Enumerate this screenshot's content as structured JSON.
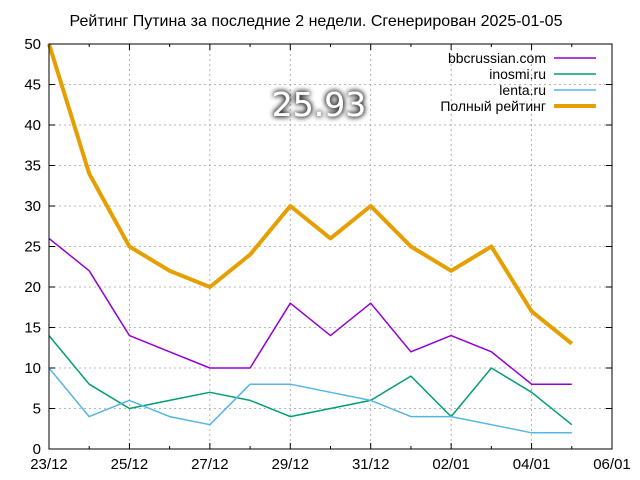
{
  "chart_data": {
    "type": "line",
    "title": "Рейтинг Путина за последние 2 недели. Сгенерирован 2025-01-05",
    "xlabel": "",
    "ylabel": "",
    "ylim": [
      0,
      50
    ],
    "yticks": [
      "0",
      "5",
      "10",
      "15",
      "20",
      "25",
      "30",
      "35",
      "40",
      "45",
      "50"
    ],
    "xticks": [
      "23/12",
      "25/12",
      "27/12",
      "29/12",
      "31/12",
      "02/01",
      "04/01",
      "06/01"
    ],
    "x": [
      "2024-12-23",
      "2024-12-24",
      "2024-12-25",
      "2024-12-26",
      "2024-12-27",
      "2024-12-28",
      "2024-12-29",
      "2024-12-30",
      "2024-12-31",
      "2025-01-01",
      "2025-01-02",
      "2025-01-03",
      "2025-01-04",
      "2025-01-05"
    ],
    "xlim": [
      "2024-12-23",
      "2025-01-06"
    ],
    "grid": true,
    "legend_position": "top-right",
    "annotation": "25.93",
    "series": [
      {
        "name": "bbcrussian.com",
        "color": "#9400d3",
        "values": [
          26,
          22,
          14,
          12,
          10,
          10,
          18,
          14,
          18,
          12,
          14,
          12,
          8,
          8
        ]
      },
      {
        "name": "inosmi.ru",
        "color": "#009e73",
        "values": [
          14,
          8,
          5,
          6,
          7,
          6,
          4,
          5,
          6,
          9,
          4,
          10,
          7,
          3
        ]
      },
      {
        "name": "lenta.ru",
        "color": "#56b4e9",
        "values": [
          10,
          4,
          6,
          4,
          3,
          8,
          8,
          7,
          6,
          4,
          4,
          3,
          2,
          2
        ]
      },
      {
        "name": "Полный рейтинг",
        "color": "#e69f00",
        "values": [
          50,
          34,
          25,
          22,
          20,
          24,
          30,
          26,
          30,
          25,
          22,
          25,
          17,
          13
        ]
      }
    ]
  }
}
